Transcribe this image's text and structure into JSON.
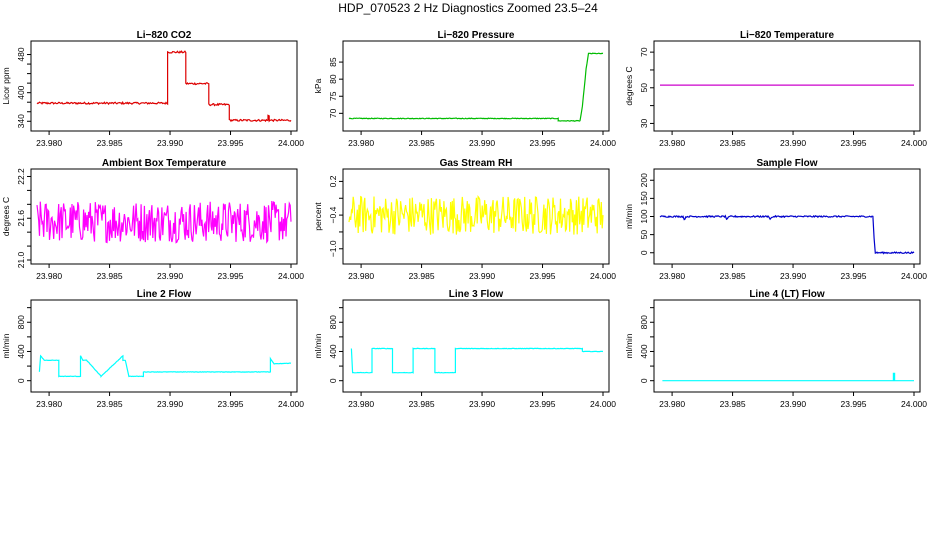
{
  "figure": {
    "title": "HDP_070523  2 Hz Diagnostics Zoomed 23.5–24"
  },
  "chart_data": [
    {
      "type": "line",
      "title": "Li−820 CO2",
      "ylabel": "Licor ppm",
      "color": "#dd0000",
      "xlim": [
        23.979,
        24.0
      ],
      "ylim": [
        328,
        500
      ],
      "x_ticks": [
        "23.980",
        "23.985",
        "23.990",
        "23.995",
        "24.000"
      ],
      "y_ticks": [
        340,
        360,
        380,
        400,
        420,
        440,
        460,
        480
      ],
      "y_tick_labels": [
        "340",
        "",
        "",
        "400",
        "",
        "",
        "",
        "480"
      ],
      "noise": 2,
      "series": [
        {
          "x": [
            23.979,
            23.9898,
            23.9898,
            23.9913,
            23.9913,
            23.9932,
            23.9932,
            23.9949,
            23.9949,
            23.9981,
            23.9981,
            23.9982,
            23.9982,
            24.0
          ],
          "y": [
            378,
            378,
            485,
            485,
            419,
            419,
            375,
            375,
            342,
            342,
            352,
            352,
            342,
            342
          ]
        }
      ]
    },
    {
      "type": "line",
      "title": "Li−820 Pressure",
      "ylabel": "kPa",
      "color": "#00bb00",
      "xlim": [
        23.979,
        24.0
      ],
      "ylim": [
        66,
        90
      ],
      "x_ticks": [
        "23.980",
        "23.985",
        "23.990",
        "23.995",
        "24.000"
      ],
      "y_ticks": [
        70,
        75,
        80,
        85
      ],
      "y_tick_labels": [
        "70",
        "75",
        "80",
        "85"
      ],
      "noise": 0.1,
      "series": [
        {
          "x": [
            23.979,
            23.9963,
            23.9963,
            23.9981,
            23.9983,
            23.9986,
            23.9988,
            24.0
          ],
          "y": [
            68.5,
            68.5,
            67.8,
            67.8,
            72,
            83,
            87.5,
            87.5
          ]
        }
      ]
    },
    {
      "type": "line",
      "title": "Li−820 Temperature",
      "ylabel": "degrees C",
      "color": "#cc00cc",
      "xlim": [
        23.979,
        24.0
      ],
      "ylim": [
        28,
        74
      ],
      "x_ticks": [
        "23.980",
        "23.985",
        "23.990",
        "23.995",
        "24.000"
      ],
      "y_ticks": [
        30,
        40,
        50,
        60,
        70
      ],
      "y_tick_labels": [
        "30",
        "",
        "50",
        "",
        "70"
      ],
      "noise": 0,
      "series": [
        {
          "x": [
            23.979,
            24.0
          ],
          "y": [
            51.5,
            51.5
          ]
        }
      ]
    },
    {
      "type": "line",
      "title": "Ambient Box Temperature",
      "ylabel": "degrees C",
      "color": "#ff00ff",
      "xlim": [
        23.979,
        24.0
      ],
      "ylim": [
        21.0,
        22.25
      ],
      "x_ticks": [
        "23.980",
        "23.985",
        "23.990",
        "23.995",
        "24.000"
      ],
      "y_ticks": [
        21.0,
        21.2,
        21.4,
        21.6,
        21.8,
        22.0,
        22.2
      ],
      "y_tick_labels": [
        "21.0",
        "",
        "",
        "21.6",
        "",
        "",
        "22.2"
      ],
      "noise": 0.3,
      "series": [
        {
          "x": [
            23.979,
            24.0
          ],
          "y": [
            21.55,
            21.55
          ]
        }
      ]
    },
    {
      "type": "line",
      "title": "Gas Stream RH",
      "ylabel": "percent",
      "color": "#ffff00",
      "xlim": [
        23.979,
        24.0
      ],
      "ylim": [
        -1.2,
        0.35
      ],
      "x_ticks": [
        "23.980",
        "23.985",
        "23.990",
        "23.995",
        "24.000"
      ],
      "y_ticks": [
        -1.0,
        -0.7,
        -0.4,
        -0.1,
        0.2
      ],
      "y_tick_labels": [
        "−1.0",
        "",
        "−0.4",
        "",
        "0.2"
      ],
      "noise": 0.35,
      "series": [
        {
          "x": [
            23.979,
            24.0
          ],
          "y": [
            -0.4,
            -0.4
          ]
        }
      ]
    },
    {
      "type": "line",
      "title": "Sample Flow",
      "ylabel": "ml/min",
      "color": "#0000cc",
      "xlim": [
        23.979,
        24.0
      ],
      "ylim": [
        -20,
        220
      ],
      "x_ticks": [
        "23.980",
        "23.985",
        "23.990",
        "23.995",
        "24.000"
      ],
      "y_ticks": [
        0,
        50,
        100,
        150,
        200
      ],
      "y_tick_labels": [
        "0",
        "50",
        "100",
        "150",
        "200"
      ],
      "noise": 2,
      "series": [
        {
          "x": [
            23.979,
            23.9809,
            23.981,
            23.9812,
            23.9844,
            23.9845,
            23.9848,
            23.988,
            23.9881,
            23.9884,
            23.9966,
            23.9967,
            23.9968,
            24.0
          ],
          "y": [
            100,
            100,
            92,
            100,
            100,
            93,
            100,
            100,
            94,
            100,
            100,
            40,
            0,
            0
          ]
        }
      ]
    },
    {
      "type": "line",
      "title": "Line 2 Flow",
      "ylabel": "ml/min",
      "color": "#00ffff",
      "xlim": [
        23.979,
        24.0
      ],
      "ylim": [
        -100,
        1050
      ],
      "x_ticks": [
        "23.980",
        "23.985",
        "23.990",
        "23.995",
        "24.000"
      ],
      "y_ticks": [
        0,
        200,
        400,
        600,
        800,
        1000
      ],
      "y_tick_labels": [
        "0",
        "",
        "400",
        "",
        "800",
        ""
      ],
      "noise": 3,
      "series": [
        {
          "x": [
            23.9792,
            23.9793,
            23.9796,
            23.9808,
            23.9808,
            23.9826,
            23.9826,
            23.9828,
            23.9831,
            23.9843,
            23.9843,
            23.9861,
            23.9861,
            23.9863,
            23.9866,
            23.9878,
            23.9878,
            23.9983,
            23.9983,
            23.9986,
            24.0
          ],
          "y": [
            120,
            340,
            280,
            280,
            60,
            60,
            340,
            280,
            280,
            60,
            60,
            340,
            280,
            280,
            60,
            60,
            120,
            120,
            300,
            230,
            240
          ]
        }
      ]
    },
    {
      "type": "line",
      "title": "Line 3 Flow",
      "ylabel": "ml/min",
      "color": "#00ffff",
      "xlim": [
        23.979,
        24.0
      ],
      "ylim": [
        -100,
        1050
      ],
      "x_ticks": [
        "23.980",
        "23.985",
        "23.990",
        "23.995",
        "24.000"
      ],
      "y_ticks": [
        0,
        200,
        400,
        600,
        800,
        1000
      ],
      "y_tick_labels": [
        "0",
        "",
        "400",
        "",
        "800",
        ""
      ],
      "noise": 3,
      "series": [
        {
          "x": [
            23.9792,
            23.9793,
            23.9809,
            23.9809,
            23.9826,
            23.9826,
            23.9843,
            23.9843,
            23.9861,
            23.9861,
            23.9878,
            23.9878,
            23.9983,
            23.9983,
            24.0
          ],
          "y": [
            440,
            110,
            110,
            440,
            440,
            110,
            110,
            440,
            440,
            110,
            110,
            440,
            440,
            400,
            400
          ]
        }
      ]
    },
    {
      "type": "line",
      "title": "Line 4 (LT) Flow",
      "ylabel": "ml/min",
      "color": "#00ffff",
      "xlim": [
        23.979,
        24.0
      ],
      "ylim": [
        -100,
        1050
      ],
      "x_ticks": [
        "23.980",
        "23.985",
        "23.990",
        "23.995",
        "24.000"
      ],
      "y_ticks": [
        0,
        200,
        400,
        600,
        800,
        1000
      ],
      "y_tick_labels": [
        "0",
        "",
        "400",
        "",
        "800",
        ""
      ],
      "noise": 0,
      "series": [
        {
          "x": [
            23.9792,
            23.9983,
            23.9983,
            23.9984,
            23.9984,
            24.0
          ],
          "y": [
            0,
            0,
            100,
            100,
            0,
            0
          ]
        }
      ]
    }
  ]
}
